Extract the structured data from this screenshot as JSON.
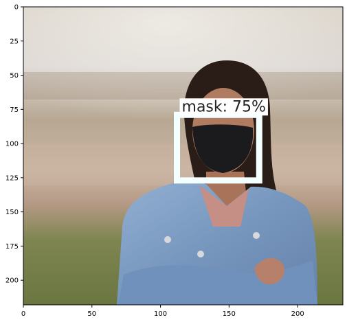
{
  "plot": {
    "xlim": [
      0,
      233
    ],
    "ylim": [
      218,
      0
    ],
    "x_ticks": [
      0,
      50,
      100,
      150,
      200
    ],
    "y_ticks": [
      0,
      25,
      50,
      75,
      100,
      125,
      150,
      175,
      200
    ],
    "x_tick_labels": [
      "0",
      "50",
      "100",
      "150",
      "200"
    ],
    "y_tick_labels": [
      "0",
      "25",
      "50",
      "75",
      "100",
      "125",
      "150",
      "175",
      "200"
    ]
  },
  "detection": {
    "label": "mask: 75%",
    "box": {
      "x0": 112,
      "y0": 79,
      "x1": 172,
      "y1": 127
    },
    "box_color": "#f4ffff",
    "label_background": "#ffffff"
  },
  "photo": {
    "subject": "woman-with-black-face-mask",
    "colors": {
      "sky": "#dcd6d0",
      "field": "#9a8f6d",
      "grass": "#6f7a45",
      "jacket": "#7f9ec4",
      "hair": "#2a1c16",
      "mask": "#1b1b1d",
      "skin": "#b07c61"
    }
  }
}
